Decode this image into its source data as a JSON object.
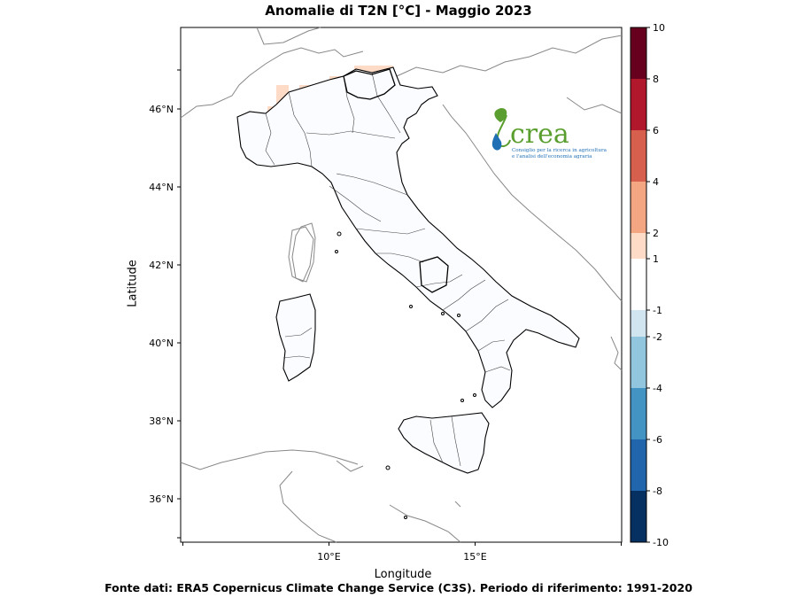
{
  "title": "Anomalie di T2N  [°C] - Maggio 2023",
  "axes": {
    "xlabel": "Longitude",
    "ylabel": "Latitude",
    "x_ticks": [
      "10°E",
      "15°E"
    ],
    "y_ticks": [
      "46°N",
      "44°N",
      "42°N",
      "40°N",
      "38°N",
      "36°N"
    ],
    "lon_range": [
      5,
      20
    ],
    "lat_range": [
      35,
      47
    ]
  },
  "colorbar": {
    "labels": [
      "10",
      "8",
      "6",
      "4",
      "2",
      "1",
      "-1",
      "-2",
      "-4",
      "-6",
      "-8",
      "-10"
    ],
    "bins": [
      {
        "from": 8,
        "to": 10,
        "color": "#67001f"
      },
      {
        "from": 6,
        "to": 8,
        "color": "#b2182b"
      },
      {
        "from": 4,
        "to": 6,
        "color": "#d6604d"
      },
      {
        "from": 2,
        "to": 4,
        "color": "#f4a582"
      },
      {
        "from": 1,
        "to": 2,
        "color": "#fddbc7"
      },
      {
        "from": -1,
        "to": 1,
        "color": "#ffffff"
      },
      {
        "from": -2,
        "to": -1,
        "color": "#d1e5f0"
      },
      {
        "from": -4,
        "to": -2,
        "color": "#92c5de"
      },
      {
        "from": -6,
        "to": -4,
        "color": "#4393c3"
      },
      {
        "from": -8,
        "to": -6,
        "color": "#2166ac"
      },
      {
        "from": -10,
        "to": -8,
        "color": "#053061"
      }
    ]
  },
  "logo": {
    "name": "crea",
    "line1": "Consiglio per la ricerca in agricoltura",
    "line2": "e l'analisi dell'economia agraria",
    "colors": {
      "green": "#5a9e2f",
      "blue": "#1f6fb5"
    }
  },
  "source": "Fonte dati: ERA5 Copernicus Climate Change Service (C3S). Periodo di riferimento: 1991-2020"
}
